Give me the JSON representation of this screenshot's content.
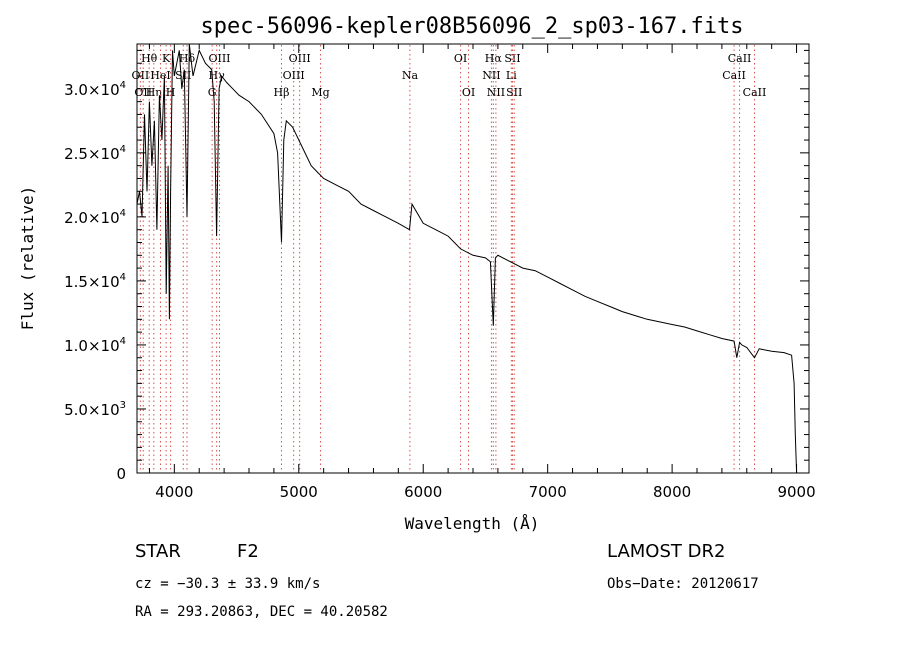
{
  "chart_data": {
    "type": "line",
    "title": "spec-56096-kepler08B56096_2_sp03-167.fits",
    "xlabel": "Wavelength (Å)",
    "ylabel": "Flux (relative)",
    "xlim": [
      3700,
      9100
    ],
    "ylim": [
      0,
      33500
    ],
    "x_ticks": [
      {
        "value": 4000,
        "label": "4000"
      },
      {
        "value": 5000,
        "label": "5000"
      },
      {
        "value": 6000,
        "label": "6000"
      },
      {
        "value": 7000,
        "label": "7000"
      },
      {
        "value": 8000,
        "label": "8000"
      },
      {
        "value": 9000,
        "label": "9000"
      }
    ],
    "y_ticks": [
      {
        "value": 0,
        "mant": "0",
        "exp": ""
      },
      {
        "value": 5000,
        "mant": "5.0×10",
        "exp": "3"
      },
      {
        "value": 10000,
        "mant": "1.0×10",
        "exp": "4"
      },
      {
        "value": 15000,
        "mant": "1.5×10",
        "exp": "4"
      },
      {
        "value": 20000,
        "mant": "2.0×10",
        "exp": "4"
      },
      {
        "value": 25000,
        "mant": "2.5×10",
        "exp": "4"
      },
      {
        "value": 30000,
        "mant": "3.0×10",
        "exp": "4"
      }
    ],
    "series": [
      {
        "x": [
          3700,
          3720,
          3740,
          3760,
          3780,
          3800,
          3820,
          3840,
          3860,
          3880,
          3900,
          3920,
          3935,
          3950,
          3960,
          3970,
          3985,
          4000,
          4020,
          4040,
          4060,
          4080,
          4102,
          4120,
          4150,
          4200,
          4250,
          4300,
          4320,
          4340,
          4360,
          4380,
          4420,
          4470,
          4520,
          4600,
          4700,
          4800,
          4830,
          4861,
          4880,
          4900,
          4950,
          5000,
          5050,
          5100,
          5150,
          5200,
          5300,
          5400,
          5500,
          5600,
          5700,
          5800,
          5890,
          5910,
          6000,
          6100,
          6200,
          6300,
          6400,
          6500,
          6540,
          6563,
          6580,
          6600,
          6700,
          6800,
          6900,
          7000,
          7100,
          7200,
          7300,
          7400,
          7500,
          7600,
          7700,
          7800,
          7900,
          8000,
          8100,
          8200,
          8300,
          8400,
          8498,
          8520,
          8542,
          8560,
          8600,
          8662,
          8700,
          8800,
          8900,
          8960,
          8980,
          8990,
          9000
        ],
        "y": [
          21000,
          22000,
          20000,
          28000,
          22000,
          29000,
          24000,
          27500,
          19000,
          29500,
          26000,
          31000,
          14000,
          24000,
          12000,
          22000,
          33000,
          31000,
          32000,
          33000,
          30000,
          31500,
          20000,
          33500,
          31000,
          33000,
          32000,
          31500,
          29000,
          18500,
          30000,
          31000,
          30500,
          30000,
          29500,
          29000,
          28000,
          26500,
          25000,
          18000,
          26000,
          27500,
          27000,
          26000,
          25000,
          24000,
          23500,
          23000,
          22500,
          22000,
          21000,
          20500,
          20000,
          19500,
          19000,
          21000,
          19500,
          19000,
          18500,
          17500,
          17000,
          16800,
          16500,
          11500,
          16800,
          17000,
          16500,
          16000,
          15800,
          15300,
          14800,
          14300,
          13800,
          13400,
          13000,
          12600,
          12300,
          12000,
          11800,
          11600,
          11400,
          11100,
          10800,
          10500,
          10300,
          9000,
          10200,
          10000,
          9800,
          9000,
          9700,
          9500,
          9400,
          9200,
          7000,
          3000,
          0
        ]
      }
    ],
    "lines": [
      {
        "x": 3727,
        "label": "OII",
        "row": 1
      },
      {
        "x": 3750,
        "label": "OII",
        "row": 2
      },
      {
        "x": 3798,
        "label": "Hθ",
        "row": 0
      },
      {
        "x": 3835,
        "label": "Hη",
        "row": 2
      },
      {
        "x": 3889,
        "label": "HeI",
        "row": 1
      },
      {
        "x": 3934,
        "label": "K",
        "row": 0
      },
      {
        "x": 3970,
        "label": "H",
        "row": 2
      },
      {
        "x": 4072,
        "label": "SII",
        "row": 1
      },
      {
        "x": 4102,
        "label": "Hδ",
        "row": 0
      },
      {
        "x": 4304,
        "label": "G",
        "row": 2
      },
      {
        "x": 4340,
        "label": "Hγ",
        "row": 1
      },
      {
        "x": 4363,
        "label": "OIII",
        "row": 0
      },
      {
        "x": 4861,
        "label": "Hβ",
        "row": 2
      },
      {
        "x": 4959,
        "label": "OIII",
        "row": 1
      },
      {
        "x": 5007,
        "label": "OIII",
        "row": 0
      },
      {
        "x": 5175,
        "label": "Mg",
        "row": 2
      },
      {
        "x": 5893,
        "label": "Na",
        "row": 1
      },
      {
        "x": 6300,
        "label": "OI",
        "row": 0
      },
      {
        "x": 6364,
        "label": "OI",
        "row": 2
      },
      {
        "x": 6548,
        "label": "NII",
        "row": 1
      },
      {
        "x": 6563,
        "label": "Hα",
        "row": 0
      },
      {
        "x": 6584,
        "label": "NII",
        "row": 2
      },
      {
        "x": 6708,
        "label": "Li",
        "row": 1
      },
      {
        "x": 6717,
        "label": "SII",
        "row": 0
      },
      {
        "x": 6731,
        "label": "SII",
        "row": 2
      },
      {
        "x": 8498,
        "label": "CaII",
        "row": 1
      },
      {
        "x": 8542,
        "label": "CaII",
        "row": 0
      },
      {
        "x": 8662,
        "label": "CaII",
        "row": 2
      }
    ]
  },
  "info": {
    "class_label": "STAR",
    "subclass": "F2",
    "survey": "LAMOST DR2",
    "cz": "cz = −30.3 ± 33.9 km/s",
    "obs_date": "Obs−Date: 20120617",
    "coords": "RA = 293.20863, DEC =  40.20582"
  }
}
